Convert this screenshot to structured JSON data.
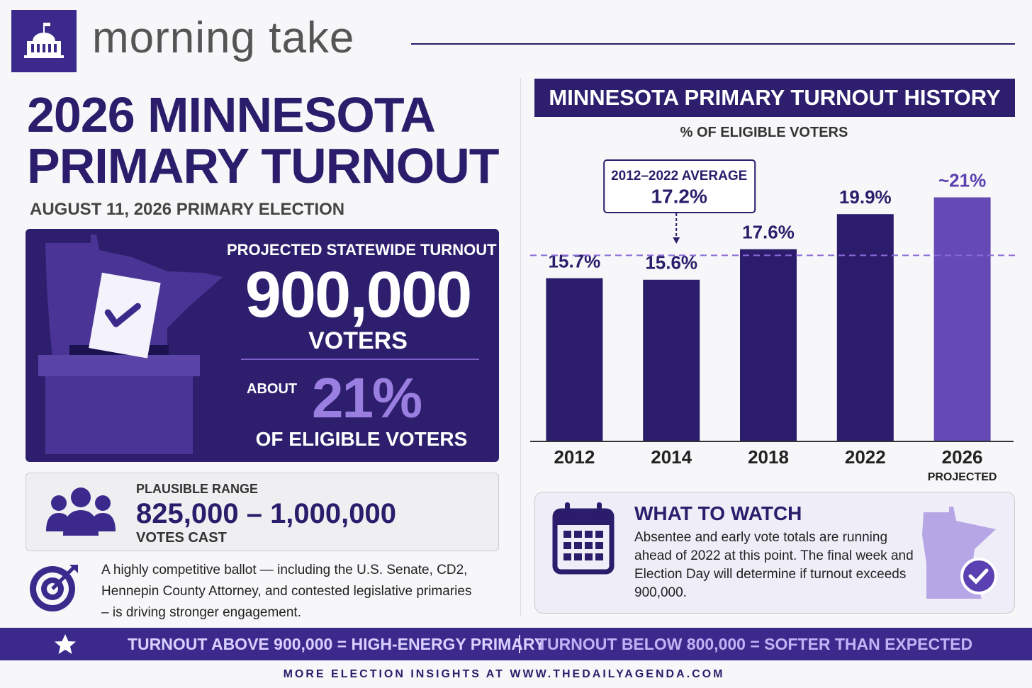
{
  "header": {
    "brand": "morning take"
  },
  "title_lines": [
    "2026 MINNESOTA",
    "PRIMARY TURNOUT"
  ],
  "subtitle": "AUGUST 11, 2026 PRIMARY ELECTION",
  "projection": {
    "label": "PROJECTED STATEWIDE TURNOUT",
    "value": "900,000",
    "unit": "VOTERS",
    "about": "ABOUT",
    "share": "21%",
    "share_label": "OF ELIGIBLE VOTERS"
  },
  "range": {
    "label": "PLAUSIBLE RANGE",
    "value": "825,000 – 1,000,000",
    "unit": "VOTES CAST"
  },
  "note": "A highly competitive ballot — including the U.S. Senate, CD2, Hennepin County Attorney, and contested legislative primaries – is driving stronger engagement.",
  "chart_data": {
    "type": "bar",
    "title": "MINNESOTA PRIMARY TURNOUT HISTORY",
    "subtitle": "% OF ELIGIBLE VOTERS",
    "categories": [
      "2012",
      "2014",
      "2018",
      "2022",
      "2026"
    ],
    "category_notes": [
      null,
      null,
      null,
      null,
      "PROJECTED"
    ],
    "values": [
      15.7,
      15.6,
      17.6,
      19.9,
      21
    ],
    "value_labels": [
      "15.7%",
      "15.6%",
      "17.6%",
      "19.9%",
      "~21%"
    ],
    "colors": [
      "#2b1d6b",
      "#2b1d6b",
      "#2b1d6b",
      "#2b1d6b",
      "#6549b5"
    ],
    "ylim": [
      5,
      22
    ],
    "reference_line": {
      "value": 17.2,
      "label": "2012–2022 AVERAGE",
      "value_label": "17.2%",
      "color": "#8a6ad8"
    }
  },
  "watch": {
    "title": "WHAT TO WATCH",
    "body": "Absentee and early vote totals are running ahead of 2022 at this point. The final week and Election Day will determine if turnout exceeds 900,000."
  },
  "banner": {
    "left": "TURNOUT ABOVE 900,000 = HIGH-ENERGY PRIMARY",
    "right": "TURNOUT BELOW 800,000 = SOFTER THAN EXPECTED"
  },
  "footer": "MORE ELECTION INSIGHTS AT WWW.THEDAILYAGENDA.COM"
}
